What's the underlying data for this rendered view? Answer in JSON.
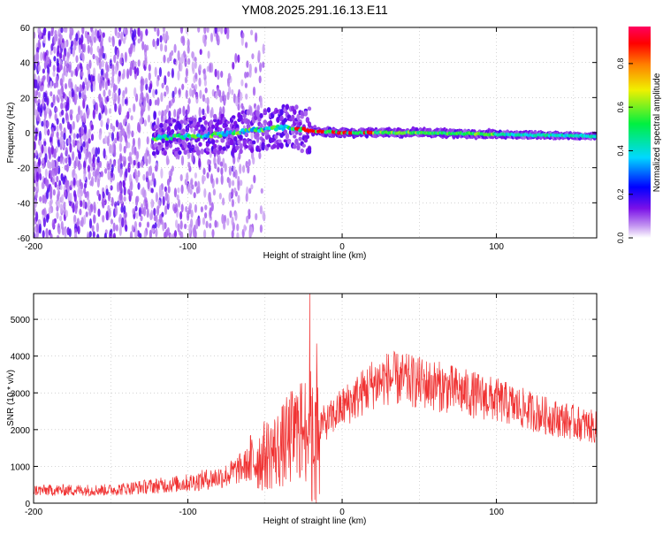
{
  "title": "YM08.2025.291.16.13.E11",
  "colors": {
    "snr_line": "#f03232",
    "colorbar": [
      "#ffffff",
      "#c090f0",
      "#7a10e8",
      "#0000ff",
      "#00d8ff",
      "#00f040",
      "#f0f000",
      "#ff8000",
      "#ff0000",
      "#ff0060"
    ]
  },
  "chart_data": [
    {
      "type": "heatmap",
      "name": "spectrogram",
      "xlabel": "Height of straight line (km)",
      "ylabel": "Frequency (Hz)",
      "xlim": [
        -200,
        165
      ],
      "ylim": [
        -60,
        60
      ],
      "xticks": [
        -200,
        -100,
        0,
        100
      ],
      "yticks": [
        -60,
        -40,
        -20,
        0,
        20,
        40,
        60
      ],
      "colorbar": {
        "label": "Normalized spectral amplitude",
        "range": [
          0,
          0.97
        ],
        "ticks": [
          "0.0",
          "0.2",
          "0.4",
          "0.6",
          "0.8"
        ]
      },
      "ridge": {
        "description_points_km": [
          -120,
          -80,
          -40,
          -20,
          0,
          50,
          100,
          165
        ],
        "center_hz": [
          -3,
          -1,
          3,
          1,
          0,
          0,
          -1,
          -2
        ]
      }
    },
    {
      "type": "line",
      "name": "snr",
      "xlabel": "Height of straight line (km)",
      "ylabel": "SNR (10 * v/v)",
      "xlim": [
        -200,
        165
      ],
      "ylim": [
        0,
        5700
      ],
      "xticks": [
        -200,
        -100,
        0,
        100
      ],
      "yticks": [
        0,
        1000,
        2000,
        3000,
        4000,
        5000
      ],
      "series": [
        {
          "name": "SNR",
          "envelope_x": [
            -200,
            -150,
            -100,
            -75,
            -50,
            -40,
            -30,
            -20,
            -10,
            0,
            10,
            20,
            30,
            40,
            60,
            80,
            100,
            130,
            150,
            165
          ],
          "envelope_y": [
            350,
            360,
            550,
            750,
            1300,
            1500,
            1900,
            2100,
            2200,
            2600,
            2900,
            3250,
            3400,
            3350,
            3200,
            3000,
            2800,
            2400,
            2200,
            2050
          ],
          "spikes": [
            {
              "x": -21,
              "y": 5700
            }
          ]
        }
      ]
    }
  ]
}
